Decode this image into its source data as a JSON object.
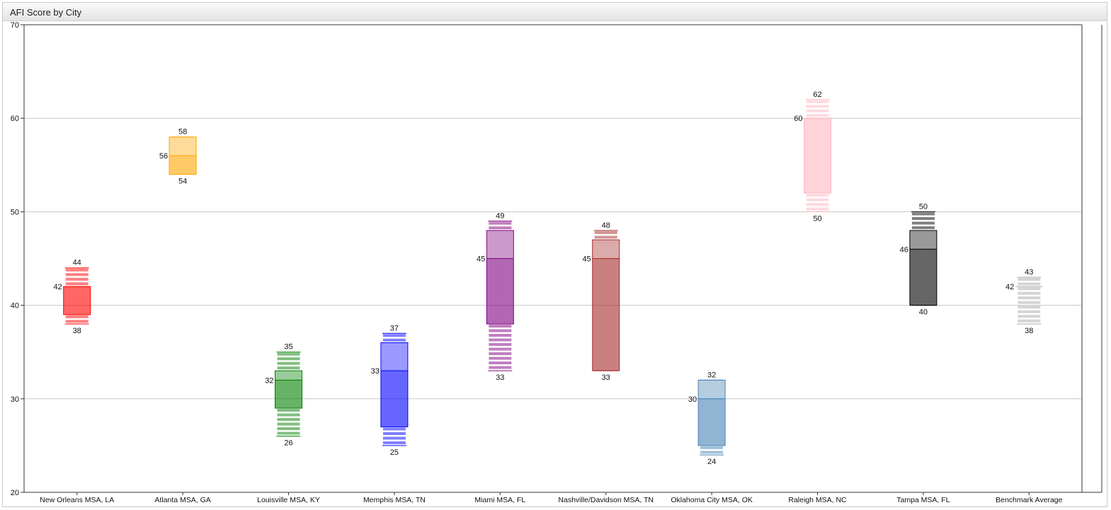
{
  "widget": {
    "title": "AFI Score by City"
  },
  "chart_data": {
    "type": "boxplot",
    "title": "AFI Score by City",
    "xlabel": "",
    "ylabel": "",
    "ylim": [
      20,
      70
    ],
    "yticks": [
      20,
      30,
      40,
      50,
      60,
      70
    ],
    "grid": true,
    "series": [
      {
        "name": "New Orleans MSA, LA",
        "color": "#ff0000",
        "min": 38,
        "q1": 39,
        "median": 42,
        "q3": 42,
        "max": 44
      },
      {
        "name": "Atlanta MSA, GA",
        "color": "#ffa500",
        "min": 54,
        "q1": 54,
        "median": 56,
        "q3": 58,
        "max": 58
      },
      {
        "name": "Louisville MSA, KY",
        "color": "#008000",
        "min": 26,
        "q1": 29,
        "median": 32,
        "q3": 33,
        "max": 35
      },
      {
        "name": "Memphis MSA, TN",
        "color": "#0000ff",
        "min": 25,
        "q1": 27,
        "median": 33,
        "q3": 36,
        "max": 37
      },
      {
        "name": "Miami MSA, FL",
        "color": "#800080",
        "min": 33,
        "q1": 38,
        "median": 45,
        "q3": 48,
        "max": 49
      },
      {
        "name": "Nashville/Davidson MSA, TN",
        "color": "#a52a2a",
        "min": 33,
        "q1": 33,
        "median": 45,
        "q3": 47,
        "max": 48
      },
      {
        "name": "Oklahoma City MSA, OK",
        "color": "#4682b4",
        "min": 24,
        "q1": 25,
        "median": 30,
        "q3": 32,
        "max": 32
      },
      {
        "name": "Raleigh MSA, NC",
        "color": "#ffb6c1",
        "min": 50,
        "q1": 52,
        "median": 60,
        "q3": 60,
        "max": 62
      },
      {
        "name": "Tampa MSA, FL",
        "color": "#000000",
        "min": 40,
        "q1": 40,
        "median": 46,
        "q3": 48,
        "max": 50
      },
      {
        "name": "Benchmark Average",
        "color": "#a9a9a9",
        "min": 38,
        "q1": 42,
        "median": 42,
        "q3": 42,
        "max": 43
      }
    ]
  }
}
